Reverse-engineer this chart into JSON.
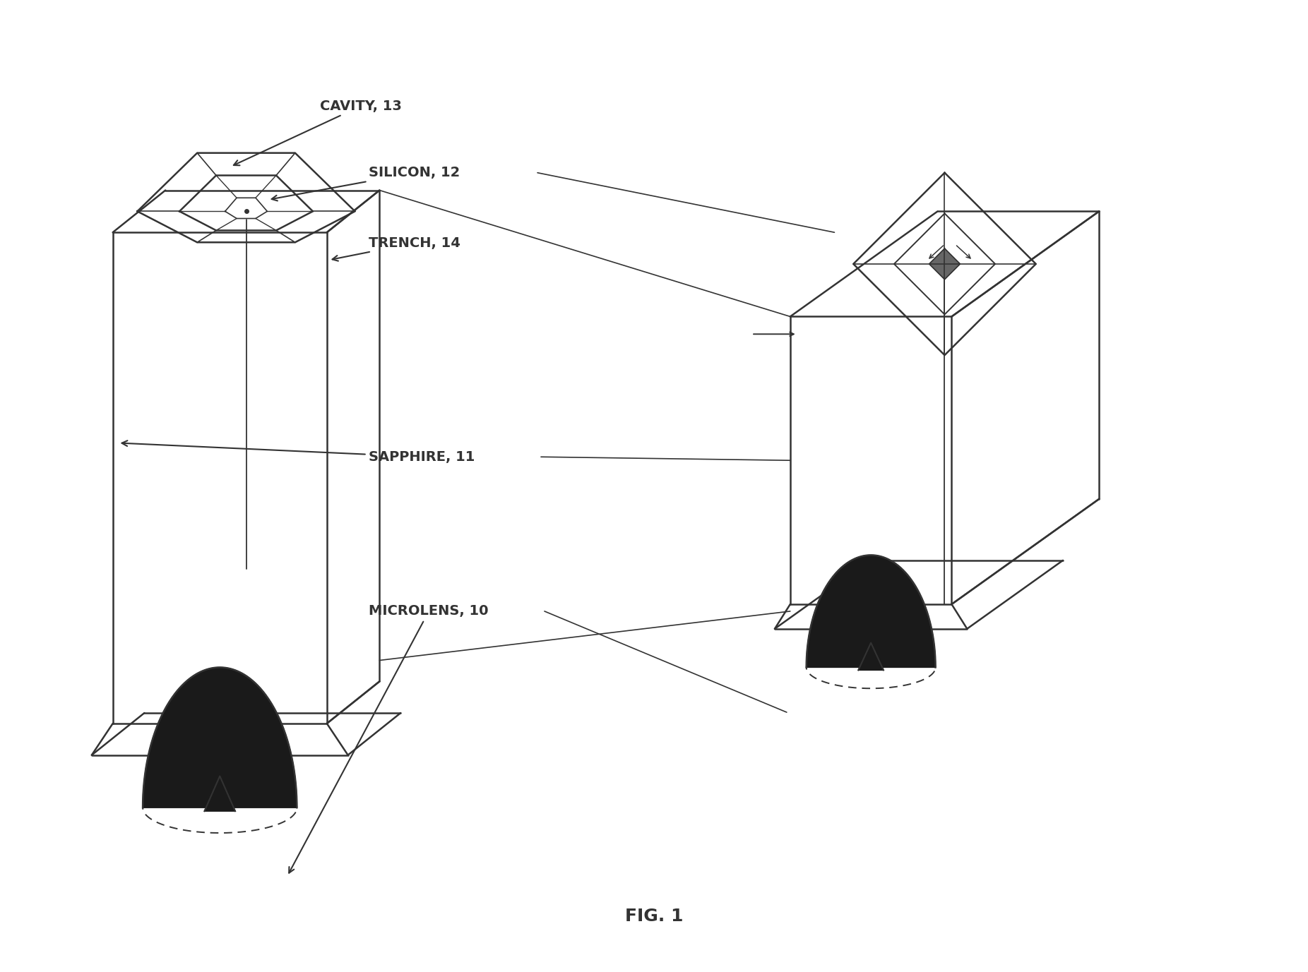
{
  "bg_color": "#ffffff",
  "line_color": "#333333",
  "dark_fill": "#1a1a1a",
  "labels": {
    "cavity": "CAVITY, 13",
    "silicon": "SILICON, 12",
    "trench": "TRENCH, 14",
    "sapphire": "SAPPHIRE, 11",
    "microlens": "MICROLENS, 10",
    "fig": "FIG. 1"
  },
  "font_size_label": 14,
  "font_size_fig": 18,
  "fig_width": 18.52,
  "fig_height": 13.77
}
